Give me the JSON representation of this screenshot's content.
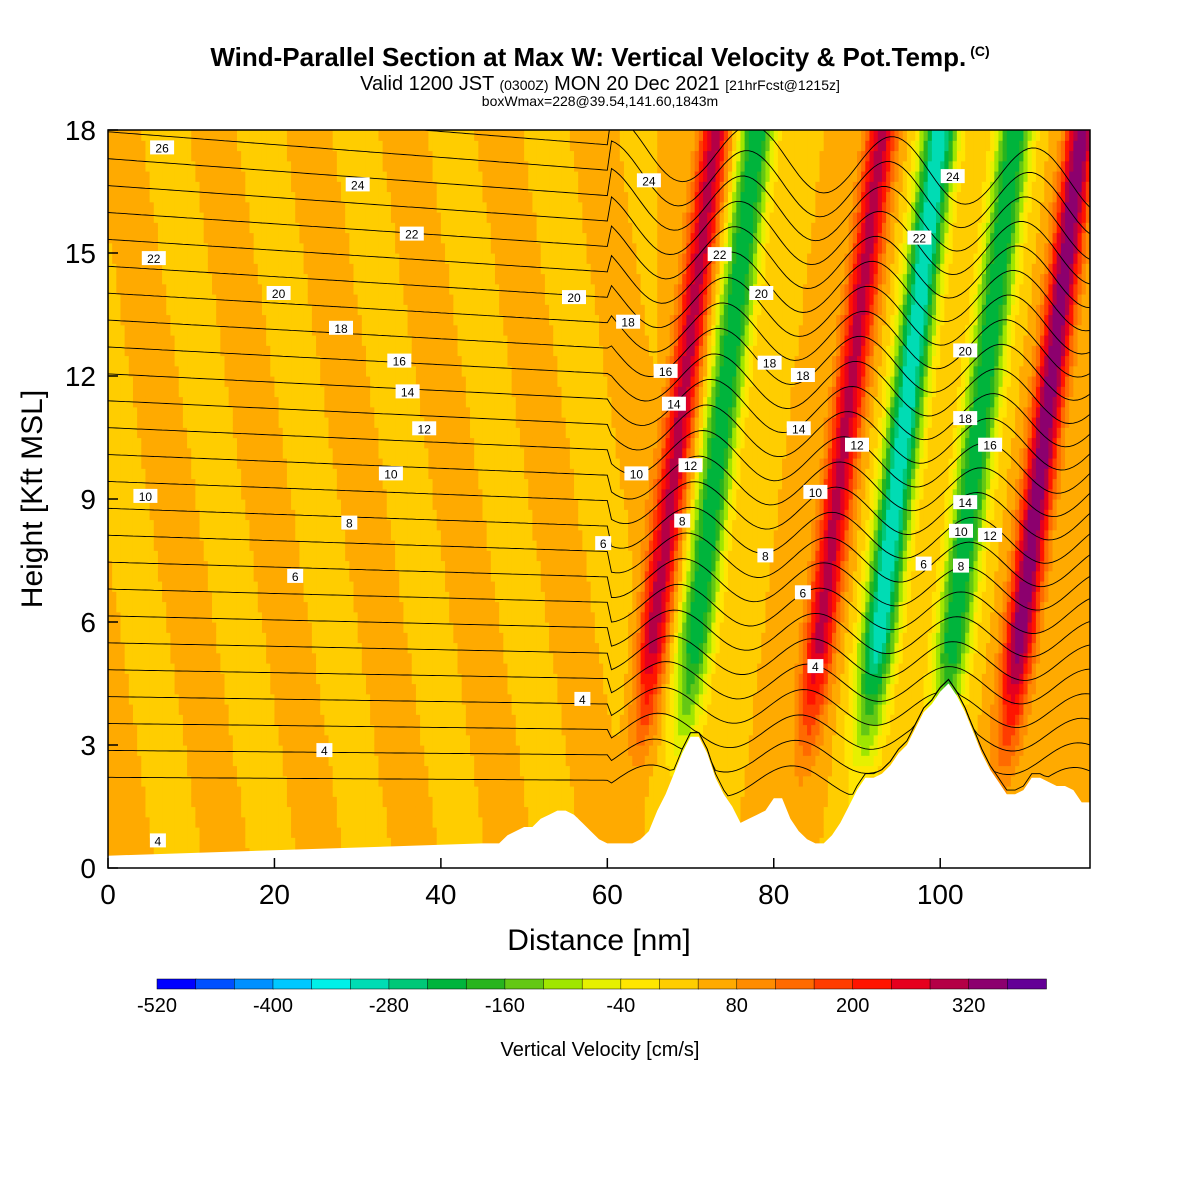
{
  "title": {
    "main": "Wind-Parallel Section at Max W: Vertical Velocity & Pot.Temp.",
    "copyright": "(C)",
    "valid_prefix": "Valid 1200 JST",
    "valid_zulu": "(0300Z)",
    "valid_date": "MON 20 Dec 2021",
    "forecast": "[21hrFcst@1215z]",
    "box_info": "boxWmax=228@39.54,141.60,1843m"
  },
  "colors": {
    "terrain": "#ffffff",
    "contour": "#000000",
    "background": "#ffffff"
  },
  "chart_data": {
    "type": "heatmap",
    "xlabel": "Distance [nm]",
    "ylabel": "Height [Kft MSL]",
    "xlim": [
      0,
      118
    ],
    "ylim": [
      0,
      18
    ],
    "x_ticks": [
      0,
      20,
      40,
      60,
      80,
      100
    ],
    "y_ticks": [
      0,
      3,
      6,
      9,
      12,
      15,
      18
    ],
    "colorbar": {
      "label": "Vertical Velocity [cm/s]",
      "boundaries": [
        -520,
        -480,
        -440,
        -400,
        -360,
        -320,
        -280,
        -240,
        -200,
        -160,
        -120,
        -80,
        -40,
        0,
        40,
        80,
        120,
        160,
        200,
        240,
        280,
        320,
        360
      ],
      "tick_labels": [
        "-520",
        "-400",
        "-280",
        "-160",
        "-40",
        "80",
        "200",
        "320"
      ],
      "colors": [
        "#0000ff",
        "#0050ff",
        "#0090ff",
        "#00c8ff",
        "#00f0e8",
        "#00dcb4",
        "#00c878",
        "#00b43c",
        "#28b41e",
        "#64c814",
        "#a0e600",
        "#e6f000",
        "#ffe600",
        "#ffcd00",
        "#ffaa00",
        "#ff8c00",
        "#ff6a00",
        "#ff3c00",
        "#ff1400",
        "#e6001e",
        "#b40046",
        "#8c006e",
        "#640096"
      ]
    },
    "vertical_velocity_background": 40,
    "updraft_bands_at_top": [
      73,
      93,
      117
    ],
    "downdraft_bands_at_top": [
      78,
      100,
      109
    ],
    "band_tilt_nm_per_kft": 0.6,
    "terrain": {
      "distance": [
        0,
        45,
        46,
        47,
        48,
        49,
        50,
        51,
        52,
        53,
        54,
        55,
        56,
        57,
        58,
        59,
        60,
        61,
        62,
        63,
        64,
        65,
        66,
        67,
        68,
        69,
        70,
        71,
        72,
        73,
        74,
        75,
        76,
        77,
        78,
        79,
        80,
        81,
        82,
        83,
        84,
        85,
        86,
        87,
        88,
        89,
        90,
        91,
        92,
        93,
        94,
        95,
        96,
        97,
        98,
        99,
        100,
        101,
        102,
        103,
        104,
        105,
        106,
        107,
        108,
        109,
        110,
        111,
        112,
        113,
        114,
        115,
        116,
        117,
        118
      ],
      "height": [
        0.3,
        0.6,
        0.6,
        0.6,
        0.8,
        0.9,
        1.0,
        1.0,
        1.2,
        1.3,
        1.4,
        1.4,
        1.3,
        1.1,
        0.9,
        0.7,
        0.6,
        0.6,
        0.6,
        0.6,
        0.7,
        0.9,
        1.4,
        1.8,
        2.3,
        2.8,
        3.2,
        3.2,
        2.8,
        2.2,
        1.8,
        1.5,
        1.1,
        1.2,
        1.3,
        1.4,
        1.7,
        1.7,
        1.2,
        0.9,
        0.7,
        0.6,
        0.6,
        0.8,
        1.1,
        1.5,
        1.9,
        2.2,
        2.2,
        2.3,
        2.5,
        2.8,
        3.0,
        3.4,
        3.8,
        4.0,
        4.3,
        4.5,
        4.2,
        3.8,
        3.3,
        2.8,
        2.4,
        2.1,
        1.8,
        1.8,
        1.9,
        2.2,
        2.2,
        2.1,
        2.0,
        2.0,
        1.9,
        1.6,
        1.6
      ]
    },
    "potential_temperature_labels": [
      {
        "x": 6.5,
        "y": 17.55,
        "text": "26"
      },
      {
        "x": 30,
        "y": 16.65,
        "text": "24"
      },
      {
        "x": 65,
        "y": 16.75,
        "text": "24"
      },
      {
        "x": 101.5,
        "y": 16.85,
        "text": "24"
      },
      {
        "x": 36.5,
        "y": 15.45,
        "text": "22"
      },
      {
        "x": 5.5,
        "y": 14.85,
        "text": "22"
      },
      {
        "x": 73.5,
        "y": 14.95,
        "text": "22"
      },
      {
        "x": 97.5,
        "y": 15.35,
        "text": "22"
      },
      {
        "x": 20.5,
        "y": 14.0,
        "text": "20"
      },
      {
        "x": 56,
        "y": 13.9,
        "text": "20"
      },
      {
        "x": 78.5,
        "y": 14.0,
        "text": "20"
      },
      {
        "x": 103,
        "y": 12.6,
        "text": "20"
      },
      {
        "x": 28,
        "y": 13.15,
        "text": "18"
      },
      {
        "x": 62.5,
        "y": 13.3,
        "text": "18"
      },
      {
        "x": 79.5,
        "y": 12.3,
        "text": "18"
      },
      {
        "x": 83.5,
        "y": 12.0,
        "text": "18"
      },
      {
        "x": 103,
        "y": 10.95,
        "text": "18"
      },
      {
        "x": 35,
        "y": 12.35,
        "text": "16"
      },
      {
        "x": 67,
        "y": 12.1,
        "text": "16"
      },
      {
        "x": 106,
        "y": 10.3,
        "text": "16"
      },
      {
        "x": 36,
        "y": 11.6,
        "text": "14"
      },
      {
        "x": 68,
        "y": 11.3,
        "text": "14"
      },
      {
        "x": 83,
        "y": 10.7,
        "text": "14"
      },
      {
        "x": 103,
        "y": 8.9,
        "text": "14"
      },
      {
        "x": 38,
        "y": 10.7,
        "text": "12"
      },
      {
        "x": 70,
        "y": 9.8,
        "text": "12"
      },
      {
        "x": 90,
        "y": 10.3,
        "text": "12"
      },
      {
        "x": 106,
        "y": 8.1,
        "text": "12"
      },
      {
        "x": 34,
        "y": 9.6,
        "text": "10"
      },
      {
        "x": 63.5,
        "y": 9.6,
        "text": "10"
      },
      {
        "x": 85,
        "y": 9.15,
        "text": "10"
      },
      {
        "x": 102.5,
        "y": 8.2,
        "text": "10"
      },
      {
        "x": 4.5,
        "y": 9.05,
        "text": "10"
      },
      {
        "x": 29,
        "y": 8.4,
        "text": "8"
      },
      {
        "x": 69,
        "y": 8.45,
        "text": "8"
      },
      {
        "x": 79,
        "y": 7.6,
        "text": "8"
      },
      {
        "x": 102.5,
        "y": 7.35,
        "text": "8"
      },
      {
        "x": 22.5,
        "y": 7.1,
        "text": "6"
      },
      {
        "x": 59.5,
        "y": 7.9,
        "text": "6"
      },
      {
        "x": 83.5,
        "y": 6.7,
        "text": "6"
      },
      {
        "x": 98,
        "y": 7.4,
        "text": "6"
      },
      {
        "x": 57,
        "y": 4.1,
        "text": "4"
      },
      {
        "x": 85,
        "y": 4.9,
        "text": "4"
      },
      {
        "x": 26,
        "y": 2.85,
        "text": "4"
      },
      {
        "x": 6,
        "y": 0.65,
        "text": "4"
      }
    ]
  }
}
